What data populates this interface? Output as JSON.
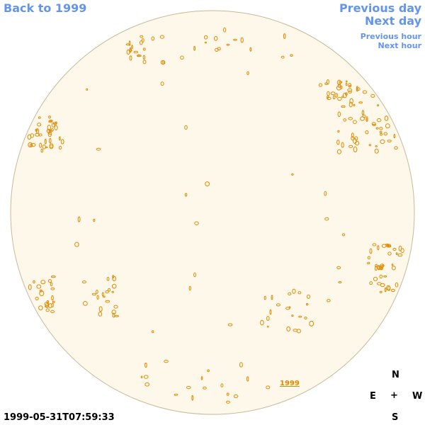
{
  "nav": {
    "back": "Back to 1999",
    "previous_day": "Previous day",
    "next_day": "Next day",
    "previous_hour": "Previous hour",
    "next_hour": "Next hour"
  },
  "compass": {
    "north": "N",
    "east": "E",
    "center": "+",
    "west": "W",
    "south": "S"
  },
  "timestamp": "1999-05-31T07:59:33",
  "year_link": "1999",
  "colors": {
    "nav": "#6495ed",
    "disk_fill": "#fdf8ea",
    "disk_outline": "#c8b99a",
    "contour": "#e08a00"
  }
}
